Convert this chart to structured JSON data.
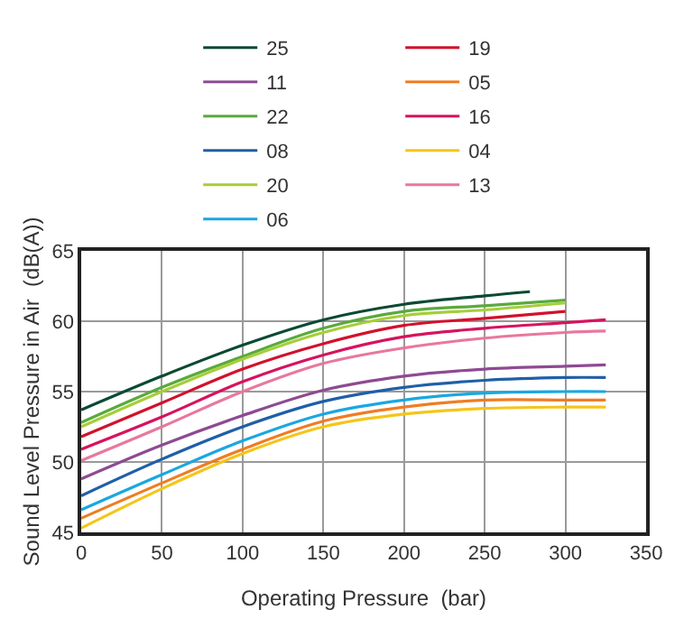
{
  "chart_data": {
    "type": "line",
    "xlabel": "Operating Pressure  (bar)",
    "ylabel": "Sound Level Pressure in Air  (dB(A))",
    "xlim": [
      0,
      350
    ],
    "xticks": [
      0,
      50,
      100,
      150,
      200,
      250,
      300,
      350
    ],
    "ylim": [
      45,
      65
    ],
    "yticks": [
      45,
      50,
      55,
      60,
      65
    ],
    "grid": true,
    "legend": "top",
    "line_style": "solid",
    "marker": "none",
    "series": [
      {
        "name": "25",
        "color": "#0b4a33",
        "x": [
          0,
          50,
          100,
          150,
          200,
          250,
          278
        ],
        "values": [
          53.7,
          56.1,
          58.3,
          60.1,
          61.2,
          61.8,
          62.1
        ]
      },
      {
        "name": "22",
        "color": "#5aaa3c",
        "x": [
          0,
          50,
          100,
          150,
          200,
          250,
          300
        ],
        "values": [
          52.8,
          55.3,
          57.5,
          59.5,
          60.7,
          61.1,
          61.5
        ]
      },
      {
        "name": "20",
        "color": "#a6ce39",
        "x": [
          0,
          50,
          100,
          150,
          200,
          250,
          300
        ],
        "values": [
          52.5,
          55.0,
          57.3,
          59.2,
          60.4,
          60.8,
          61.3
        ]
      },
      {
        "name": "19",
        "color": "#d2112b",
        "x": [
          0,
          50,
          100,
          150,
          200,
          250,
          300
        ],
        "values": [
          51.8,
          54.2,
          56.6,
          58.4,
          59.7,
          60.2,
          60.7
        ]
      },
      {
        "name": "16",
        "color": "#d6135e",
        "x": [
          0,
          50,
          100,
          150,
          200,
          250,
          300,
          325
        ],
        "values": [
          50.9,
          53.2,
          55.7,
          57.6,
          58.9,
          59.5,
          59.9,
          60.1
        ]
      },
      {
        "name": "13",
        "color": "#e8789e",
        "x": [
          0,
          50,
          100,
          150,
          200,
          250,
          300,
          325
        ],
        "values": [
          50.1,
          52.5,
          55.0,
          57.0,
          58.1,
          58.8,
          59.2,
          59.3
        ]
      },
      {
        "name": "11",
        "color": "#8e4a92",
        "x": [
          0,
          50,
          100,
          150,
          200,
          250,
          300,
          325
        ],
        "values": [
          48.8,
          51.2,
          53.3,
          55.1,
          56.1,
          56.6,
          56.8,
          56.9
        ]
      },
      {
        "name": "08",
        "color": "#1f5fa8",
        "x": [
          0,
          50,
          100,
          150,
          200,
          250,
          300,
          325
        ],
        "values": [
          47.6,
          50.2,
          52.5,
          54.3,
          55.3,
          55.8,
          56.0,
          56.0
        ]
      },
      {
        "name": "06",
        "color": "#1aa7e0",
        "x": [
          0,
          50,
          100,
          150,
          200,
          250,
          300,
          325
        ],
        "values": [
          46.6,
          49.1,
          51.5,
          53.4,
          54.4,
          54.9,
          55.0,
          55.0
        ]
      },
      {
        "name": "05",
        "color": "#ef7d22",
        "x": [
          0,
          50,
          100,
          150,
          200,
          250,
          300,
          325
        ],
        "values": [
          46.0,
          48.5,
          50.9,
          52.9,
          53.9,
          54.4,
          54.4,
          54.4
        ]
      },
      {
        "name": "04",
        "color": "#f5c518",
        "x": [
          0,
          50,
          100,
          150,
          200,
          250,
          300,
          325
        ],
        "values": [
          45.3,
          48.1,
          50.6,
          52.5,
          53.4,
          53.8,
          53.9,
          53.9
        ]
      }
    ]
  }
}
